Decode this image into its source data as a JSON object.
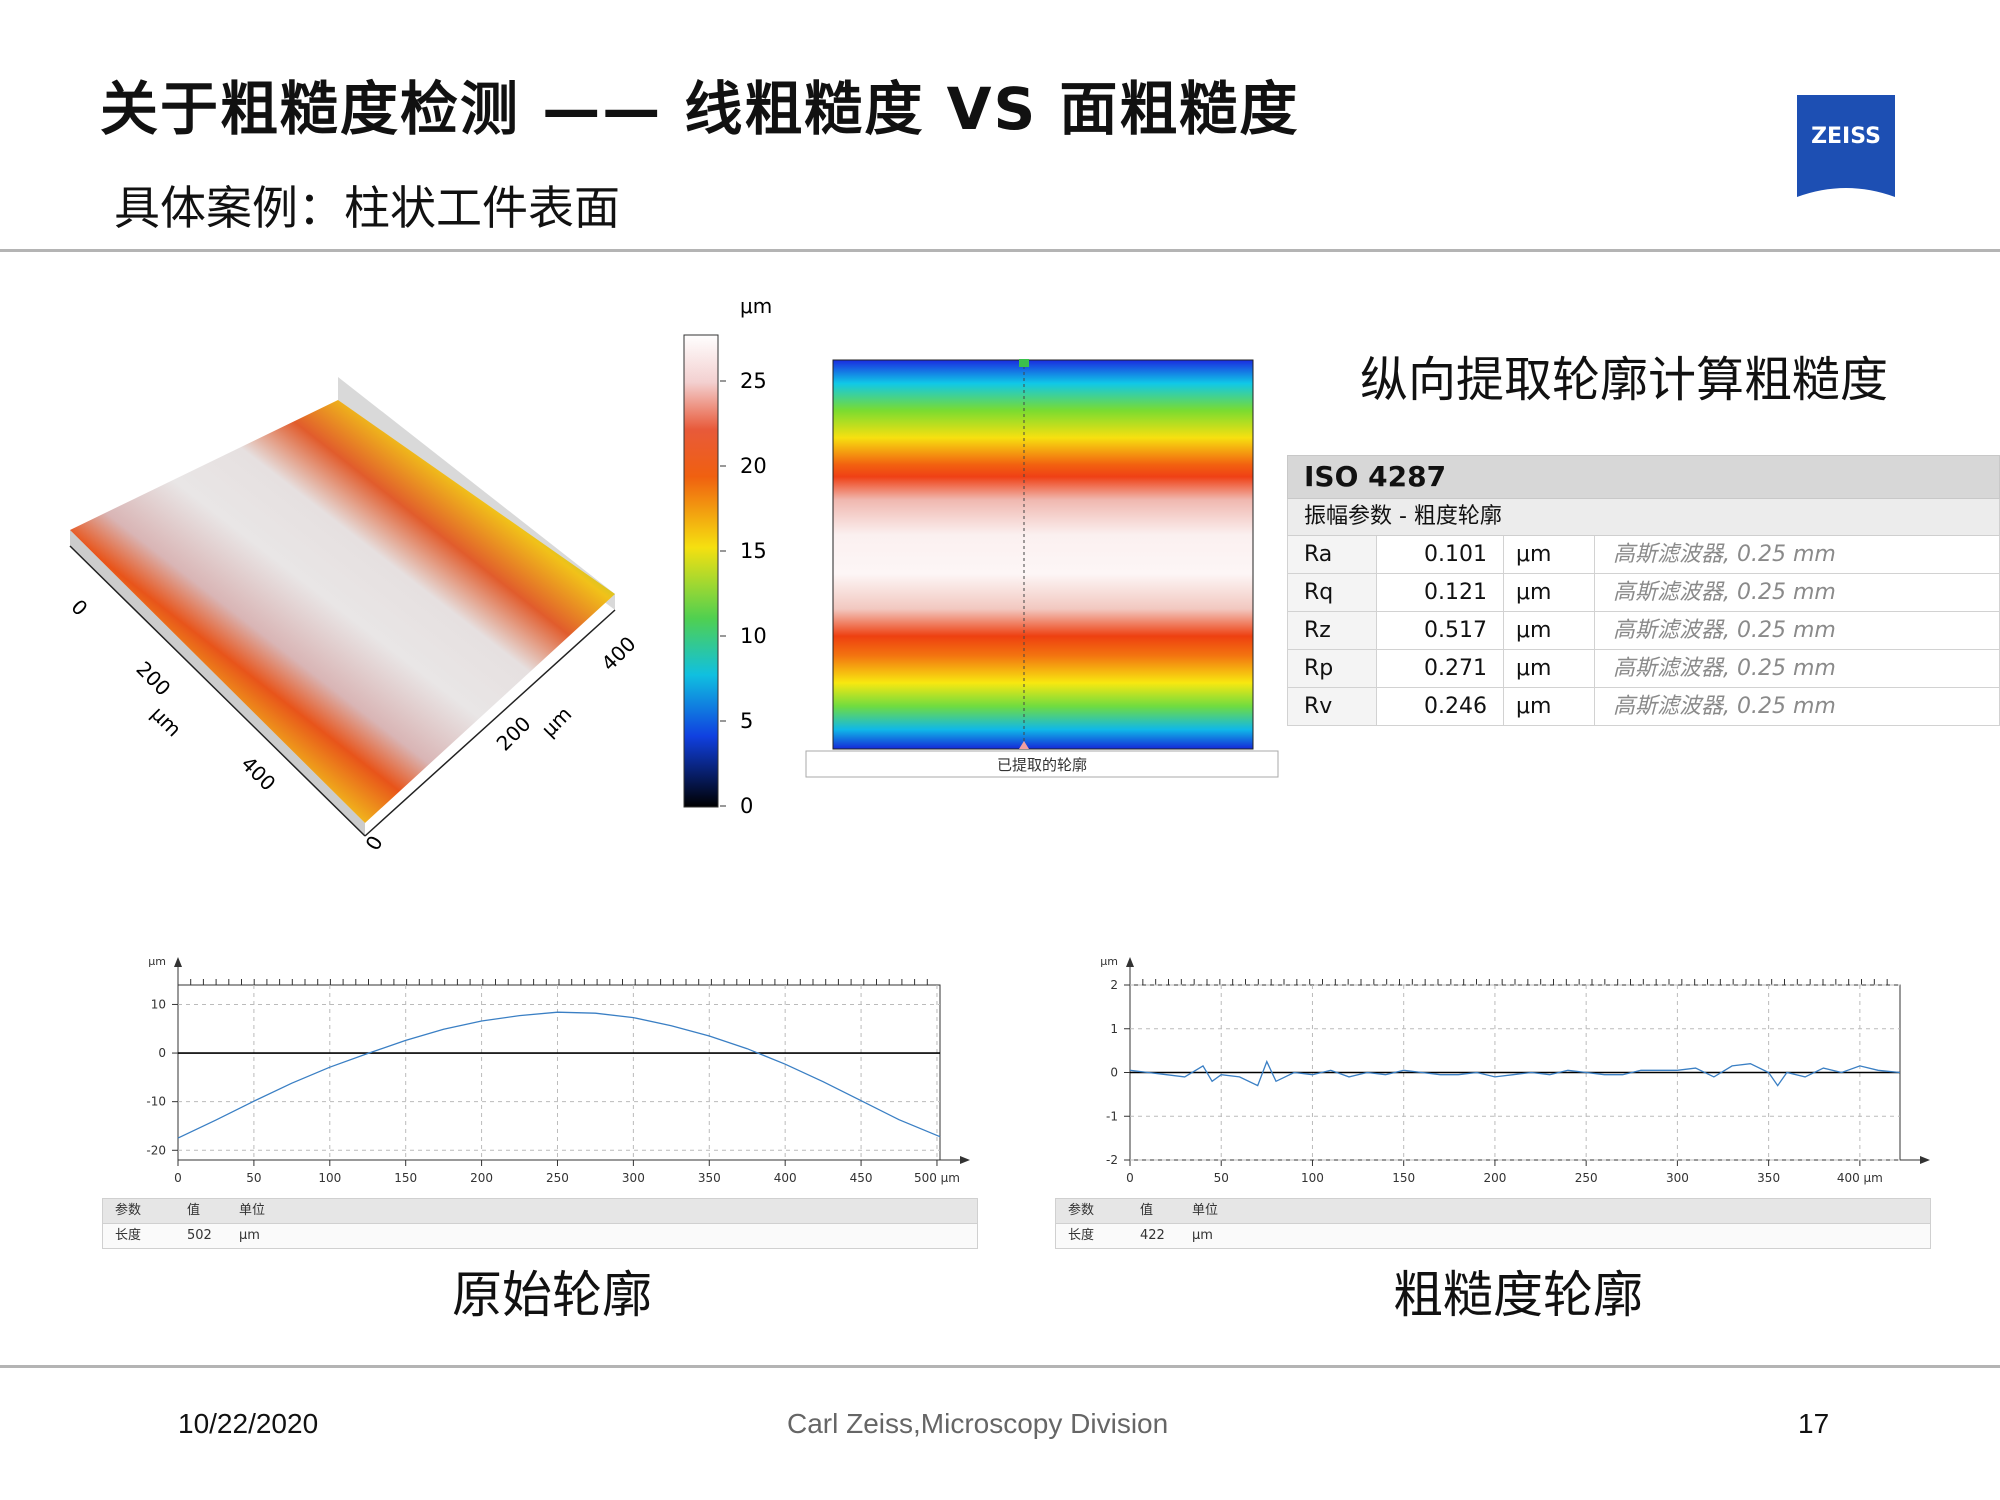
{
  "header": {
    "title": "关于粗糙度检测 —— 线粗糙度 VS 面粗糙度",
    "subtitle": "具体案例：柱状工件表面",
    "logo_text": "ZEISS"
  },
  "surface3d": {
    "x_ticks": [
      "0",
      "200",
      "400"
    ],
    "y_ticks": [
      "0",
      "200",
      "400"
    ],
    "x_unit": "μm",
    "y_unit": "μm"
  },
  "colorbar": {
    "unit": "μm",
    "ticks": [
      "25",
      "20",
      "15",
      "10",
      "5",
      "0"
    ]
  },
  "heatmap": {
    "caption": "已提取的轮廓"
  },
  "extract_title": "纵向提取轮廓计算粗糙度",
  "iso_table": {
    "standard": "ISO 4287",
    "subtitle": "振幅参数 - 粗度轮廓",
    "rows": [
      {
        "param": "Ra",
        "value": "0.101",
        "unit": "μm",
        "filter": "高斯滤波器, 0.25 mm"
      },
      {
        "param": "Rq",
        "value": "0.121",
        "unit": "μm",
        "filter": "高斯滤波器, 0.25 mm"
      },
      {
        "param": "Rz",
        "value": "0.517",
        "unit": "μm",
        "filter": "高斯滤波器, 0.25 mm"
      },
      {
        "param": "Rp",
        "value": "0.271",
        "unit": "μm",
        "filter": "高斯滤波器, 0.25 mm"
      },
      {
        "param": "Rv",
        "value": "0.246",
        "unit": "μm",
        "filter": "高斯滤波器, 0.25 mm"
      }
    ]
  },
  "chart_data": [
    {
      "type": "line",
      "title": "原始轮廓",
      "xlabel": "μm",
      "ylabel": "μm",
      "x_ticks": [
        "0",
        "50",
        "100",
        "150",
        "200",
        "250",
        "300",
        "350",
        "400",
        "450",
        "500"
      ],
      "x_last_label": "500 μm",
      "y_ticks": [
        "10",
        "0",
        "-10",
        "-20"
      ],
      "xlim": [
        0,
        502
      ],
      "ylim": [
        -22,
        14
      ],
      "series": [
        {
          "x": [
            0,
            25,
            50,
            75,
            100,
            125,
            150,
            175,
            200,
            225,
            250,
            275,
            300,
            325,
            350,
            375,
            400,
            425,
            450,
            475,
            502
          ],
          "y": [
            -17.5,
            -13.8,
            -9.9,
            -6.2,
            -2.9,
            -0.1,
            2.6,
            4.9,
            6.6,
            7.7,
            8.4,
            8.2,
            7.3,
            5.6,
            3.5,
            0.9,
            -2.3,
            -5.9,
            -9.8,
            -13.7,
            -17.2
          ]
        }
      ],
      "params": {
        "header": [
          "参数",
          "值",
          "单位"
        ],
        "row": [
          "长度",
          "502",
          "μm"
        ]
      }
    },
    {
      "type": "line",
      "title": "粗糙度轮廓",
      "xlabel": "μm",
      "ylabel": "μm",
      "x_ticks": [
        "0",
        "50",
        "100",
        "150",
        "200",
        "250",
        "300",
        "350",
        "400"
      ],
      "x_last_label": "400 μm",
      "y_ticks": [
        "2",
        "1",
        "0",
        "-1",
        "-2"
      ],
      "xlim": [
        0,
        422
      ],
      "ylim": [
        -2,
        2
      ],
      "series": [
        {
          "x": [
            0,
            10,
            20,
            30,
            40,
            45,
            50,
            60,
            70,
            75,
            80,
            90,
            100,
            110,
            120,
            130,
            140,
            150,
            160,
            170,
            180,
            190,
            200,
            210,
            220,
            230,
            240,
            250,
            260,
            270,
            280,
            290,
            300,
            310,
            320,
            330,
            340,
            350,
            355,
            360,
            370,
            380,
            390,
            400,
            410,
            422
          ],
          "y": [
            0.05,
            0.0,
            -0.05,
            -0.1,
            0.15,
            -0.2,
            -0.05,
            -0.1,
            -0.3,
            0.25,
            -0.2,
            0.0,
            -0.05,
            0.05,
            -0.1,
            0.0,
            -0.05,
            0.05,
            0.0,
            -0.05,
            -0.05,
            0.0,
            -0.1,
            -0.05,
            0.0,
            -0.05,
            0.05,
            0.0,
            -0.05,
            -0.05,
            0.05,
            0.05,
            0.05,
            0.1,
            -0.1,
            0.15,
            0.2,
            0.0,
            -0.3,
            0.0,
            -0.1,
            0.1,
            0.0,
            0.15,
            0.05,
            0.0
          ]
        }
      ],
      "params": {
        "header": [
          "参数",
          "值",
          "单位"
        ],
        "row": [
          "长度",
          "422",
          "μm"
        ]
      }
    }
  ],
  "captions": {
    "raw": "原始轮廓",
    "roughness": "粗糙度轮廓"
  },
  "footer": {
    "date": "10/22/2020",
    "division": "Carl Zeiss,Microscopy Division",
    "page": "17"
  }
}
